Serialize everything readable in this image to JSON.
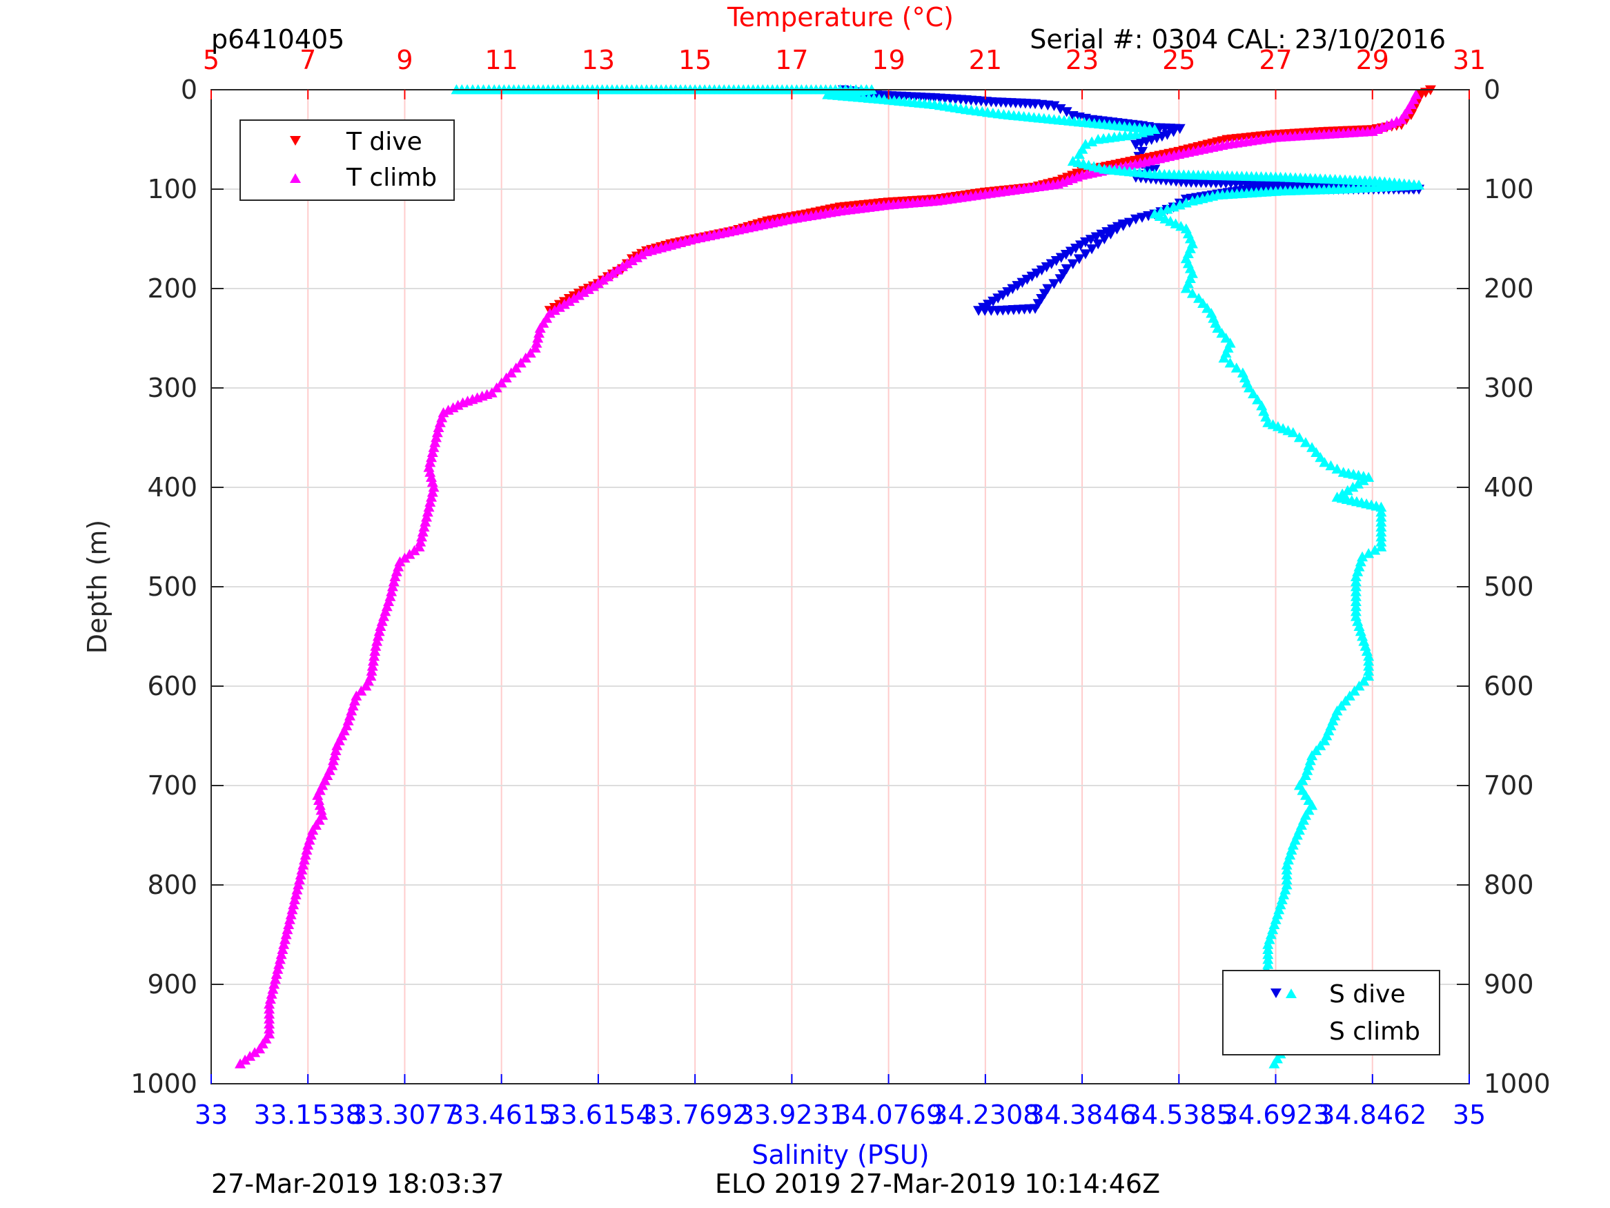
{
  "header": {
    "profile_id": "p6410405",
    "serial_cal": "Serial #: 0304  CAL: 23/10/2016"
  },
  "footer": {
    "left_timestamp": "27-Mar-2019 18:03:37",
    "right_label": "ELO 2019 27-Mar-2019 10:14:46Z"
  },
  "colors": {
    "t_dive": "#ff0000",
    "t_climb": "#ff00ff",
    "s_dive": "#0000e6",
    "s_climb": "#00ffff",
    "temp_axis": "#ff0000",
    "sal_axis": "#0000ff",
    "grid_temp": "#ffcccc",
    "grid_depth": "#dddddd"
  },
  "chart_data": {
    "type": "scatter",
    "title": "",
    "ylabel": "Depth (m)",
    "ylim": [
      0,
      1000
    ],
    "y_reversed": true,
    "y_ticks": [
      0,
      100,
      200,
      300,
      400,
      500,
      600,
      700,
      800,
      900,
      1000
    ],
    "temperature_axis": {
      "label": "Temperature (°C)",
      "position": "top",
      "range": [
        5,
        31
      ],
      "ticks": [
        5,
        7,
        9,
        11,
        13,
        15,
        17,
        19,
        21,
        23,
        25,
        27,
        29,
        31
      ]
    },
    "salinity_axis": {
      "label": "Salinity (PSU)",
      "position": "bottom",
      "range": [
        33,
        35
      ],
      "ticks": [
        33,
        33.1538,
        33.3077,
        33.4615,
        33.6154,
        33.7692,
        33.9231,
        34.0769,
        34.2308,
        34.3846,
        34.5385,
        34.6923,
        34.8462,
        35
      ],
      "tick_labels": [
        "33",
        "33.1538",
        "33.3077",
        "33.4615",
        "33.6154",
        "33.7692",
        "33.9231",
        "34.0769",
        "34.2308",
        "34.3846",
        "34.5385",
        "34.6923",
        "34.8462",
        "35"
      ]
    },
    "legend_temperature": {
      "placement": "top-left",
      "entries": [
        {
          "name": "T dive",
          "marker": "triangle-down"
        },
        {
          "name": "T climb",
          "marker": "triangle-up"
        }
      ]
    },
    "legend_salinity": {
      "placement": "bottom-right",
      "entries": [
        {
          "name": "S dive",
          "marker": "triangle-down"
        },
        {
          "name": "S climb",
          "marker": "triangle-up"
        }
      ]
    },
    "series": [
      {
        "name": "T dive",
        "axis": "temperature",
        "marker": "triangle-down",
        "points": [
          [
            30.2,
            0
          ],
          [
            30.0,
            5
          ],
          [
            29.9,
            15
          ],
          [
            29.8,
            25
          ],
          [
            29.6,
            35
          ],
          [
            29.0,
            40
          ],
          [
            28.0,
            42
          ],
          [
            27.0,
            45
          ],
          [
            26.0,
            50
          ],
          [
            25.0,
            62
          ],
          [
            24.0,
            72
          ],
          [
            23.0,
            82
          ],
          [
            22.5,
            92
          ],
          [
            22.0,
            98
          ],
          [
            21.0,
            103
          ],
          [
            20.0,
            110
          ],
          [
            19.0,
            113
          ],
          [
            18.0,
            118
          ],
          [
            17.3,
            125
          ],
          [
            16.5,
            132
          ],
          [
            15.8,
            142
          ],
          [
            15.2,
            148
          ],
          [
            14.5,
            155
          ],
          [
            14.0,
            162
          ],
          [
            13.7,
            170
          ],
          [
            13.5,
            180
          ],
          [
            13.2,
            188
          ],
          [
            13.0,
            195
          ],
          [
            12.7,
            202
          ],
          [
            12.4,
            210
          ],
          [
            12.0,
            222
          ]
        ]
      },
      {
        "name": "T climb",
        "axis": "temperature",
        "marker": "triangle-up",
        "points": [
          [
            29.9,
            5
          ],
          [
            29.8,
            15
          ],
          [
            29.6,
            30
          ],
          [
            29.0,
            42
          ],
          [
            28.0,
            45
          ],
          [
            27.0,
            48
          ],
          [
            26.0,
            55
          ],
          [
            25.0,
            65
          ],
          [
            24.0,
            76
          ],
          [
            23.0,
            86
          ],
          [
            22.5,
            95
          ],
          [
            21.0,
            105
          ],
          [
            20.0,
            112
          ],
          [
            19.0,
            116
          ],
          [
            18.0,
            122
          ],
          [
            17.0,
            130
          ],
          [
            16.0,
            140
          ],
          [
            15.0,
            150
          ],
          [
            14.0,
            163
          ],
          [
            13.5,
            178
          ],
          [
            13.0,
            195
          ],
          [
            12.5,
            210
          ],
          [
            12.0,
            225
          ],
          [
            11.8,
            240
          ],
          [
            11.7,
            260
          ],
          [
            11.4,
            275
          ],
          [
            11.1,
            290
          ],
          [
            10.8,
            305
          ],
          [
            10.2,
            315
          ],
          [
            9.8,
            325
          ],
          [
            9.7,
            340
          ],
          [
            9.6,
            360
          ],
          [
            9.5,
            380
          ],
          [
            9.6,
            400
          ],
          [
            9.5,
            420
          ],
          [
            9.4,
            440
          ],
          [
            9.3,
            460
          ],
          [
            8.9,
            475
          ],
          [
            8.8,
            490
          ],
          [
            8.7,
            510
          ],
          [
            8.5,
            540
          ],
          [
            8.4,
            560
          ],
          [
            8.3,
            590
          ],
          [
            8.2,
            600
          ],
          [
            8.0,
            610
          ],
          [
            7.9,
            625
          ],
          [
            7.8,
            640
          ],
          [
            7.6,
            660
          ],
          [
            7.5,
            680
          ],
          [
            7.3,
            700
          ],
          [
            7.2,
            710
          ],
          [
            7.3,
            730
          ],
          [
            7.1,
            745
          ],
          [
            7.0,
            760
          ],
          [
            6.9,
            780
          ],
          [
            6.8,
            800
          ],
          [
            6.7,
            820
          ],
          [
            6.6,
            840
          ],
          [
            6.5,
            860
          ],
          [
            6.4,
            880
          ],
          [
            6.3,
            900
          ],
          [
            6.2,
            920
          ],
          [
            6.2,
            950
          ],
          [
            6.0,
            965
          ],
          [
            5.6,
            980
          ]
        ]
      },
      {
        "name": "S dive",
        "axis": "salinity",
        "marker": "triangle-down",
        "points": [
          [
            34.005,
            0
          ],
          [
            34.05,
            5
          ],
          [
            34.15,
            8
          ],
          [
            34.2,
            10
          ],
          [
            34.24,
            12
          ],
          [
            34.31,
            14
          ],
          [
            34.34,
            16
          ],
          [
            34.36,
            22
          ],
          [
            34.37,
            26
          ],
          [
            34.4,
            30
          ],
          [
            34.44,
            33
          ],
          [
            34.48,
            36
          ],
          [
            34.5,
            38
          ],
          [
            34.54,
            39
          ],
          [
            34.52,
            45
          ],
          [
            34.47,
            55
          ],
          [
            34.48,
            62
          ],
          [
            34.47,
            72
          ],
          [
            34.5,
            80
          ],
          [
            34.47,
            88
          ],
          [
            34.55,
            93
          ],
          [
            34.7,
            95
          ],
          [
            34.85,
            97
          ],
          [
            34.9,
            98
          ],
          [
            34.92,
            100
          ],
          [
            34.8,
            100
          ],
          [
            34.7,
            100
          ],
          [
            34.65,
            100
          ],
          [
            34.6,
            105
          ],
          [
            34.55,
            110
          ],
          [
            34.53,
            118
          ],
          [
            34.5,
            125
          ],
          [
            34.47,
            130
          ],
          [
            34.44,
            140
          ],
          [
            34.42,
            150
          ],
          [
            34.4,
            160
          ],
          [
            34.38,
            170
          ],
          [
            34.36,
            180
          ],
          [
            34.35,
            190
          ],
          [
            34.33,
            200
          ],
          [
            34.32,
            210
          ],
          [
            34.31,
            220
          ],
          [
            34.25,
            222
          ],
          [
            34.22,
            222
          ],
          [
            34.39,
            153
          ],
          [
            34.45,
            135
          ]
        ]
      },
      {
        "name": "S climb",
        "axis": "salinity",
        "marker": "triangle-up",
        "points": [
          [
            33.39,
            0
          ],
          [
            33.45,
            0
          ],
          [
            33.52,
            0
          ],
          [
            33.7,
            0
          ],
          [
            34.0,
            0
          ],
          [
            34.05,
            0
          ],
          [
            33.98,
            5
          ],
          [
            34.07,
            10
          ],
          [
            34.15,
            15
          ],
          [
            34.2,
            20
          ],
          [
            34.26,
            25
          ],
          [
            34.34,
            30
          ],
          [
            34.42,
            35
          ],
          [
            34.5,
            40
          ],
          [
            34.47,
            45
          ],
          [
            34.41,
            50
          ],
          [
            34.39,
            55
          ],
          [
            34.38,
            65
          ],
          [
            34.37,
            72
          ],
          [
            34.42,
            80
          ],
          [
            34.5,
            85
          ],
          [
            34.7,
            88
          ],
          [
            34.85,
            92
          ],
          [
            34.92,
            96
          ],
          [
            34.8,
            100
          ],
          [
            34.7,
            102
          ],
          [
            34.6,
            106
          ],
          [
            34.56,
            112
          ],
          [
            34.53,
            118
          ],
          [
            34.5,
            125
          ],
          [
            34.55,
            140
          ],
          [
            34.56,
            155
          ],
          [
            34.55,
            170
          ],
          [
            34.56,
            185
          ],
          [
            34.55,
            200
          ],
          [
            34.57,
            210
          ],
          [
            34.59,
            225
          ],
          [
            34.6,
            240
          ],
          [
            34.62,
            255
          ],
          [
            34.61,
            270
          ],
          [
            34.64,
            285
          ],
          [
            34.65,
            300
          ],
          [
            34.67,
            318
          ],
          [
            34.68,
            335
          ],
          [
            34.72,
            345
          ],
          [
            34.75,
            360
          ],
          [
            34.77,
            375
          ],
          [
            34.8,
            385
          ],
          [
            34.84,
            390
          ],
          [
            34.79,
            410
          ],
          [
            34.86,
            420
          ],
          [
            34.86,
            440
          ],
          [
            34.86,
            460
          ],
          [
            34.83,
            470
          ],
          [
            34.82,
            490
          ],
          [
            34.82,
            510
          ],
          [
            34.82,
            530
          ],
          [
            34.83,
            550
          ],
          [
            34.84,
            570
          ],
          [
            34.84,
            590
          ],
          [
            34.81,
            610
          ],
          [
            34.79,
            625
          ],
          [
            34.78,
            640
          ],
          [
            34.77,
            655
          ],
          [
            34.75,
            670
          ],
          [
            34.74,
            690
          ],
          [
            34.73,
            700
          ],
          [
            34.75,
            720
          ],
          [
            34.74,
            730
          ],
          [
            34.73,
            745
          ],
          [
            34.72,
            760
          ],
          [
            34.71,
            780
          ],
          [
            34.71,
            800
          ],
          [
            34.7,
            820
          ],
          [
            34.69,
            840
          ],
          [
            34.68,
            860
          ],
          [
            34.68,
            880
          ],
          [
            34.67,
            900
          ],
          [
            34.68,
            920
          ],
          [
            34.69,
            940
          ],
          [
            34.7,
            955
          ],
          [
            34.7,
            970
          ],
          [
            34.69,
            980
          ]
        ]
      }
    ]
  }
}
